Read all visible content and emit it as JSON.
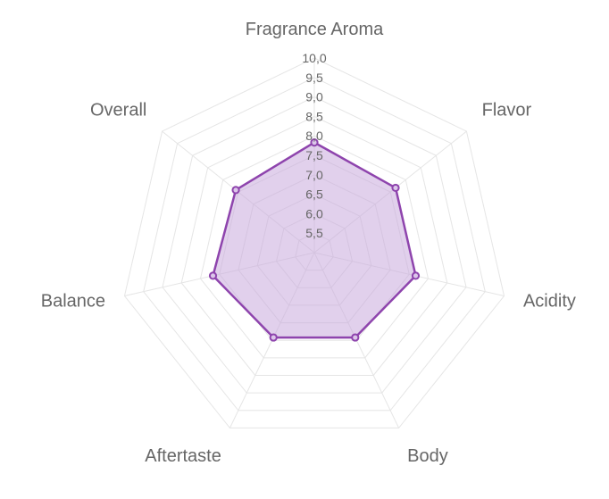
{
  "chart_data": {
    "type": "radar",
    "axes": [
      "Fragrance Aroma",
      "Flavor",
      "Acidity",
      "Body",
      "Aftertaste",
      "Balance",
      "Overall"
    ],
    "series": [
      {
        "values": [
          7.83,
          7.67,
          7.67,
          7.42,
          7.42,
          7.67,
          7.58
        ],
        "line_color": "#8e44ad",
        "fill_color": "#c9a9dd"
      }
    ],
    "radial_ticks": [
      "5,5",
      "6,0",
      "6,5",
      "7,0",
      "7,5",
      "8,0",
      "8,5",
      "9,0",
      "9,5",
      "10,0"
    ],
    "r_range": [
      5,
      10
    ],
    "tick_step": 0.5,
    "grid": true,
    "grid_color": "#e5e5e5"
  }
}
